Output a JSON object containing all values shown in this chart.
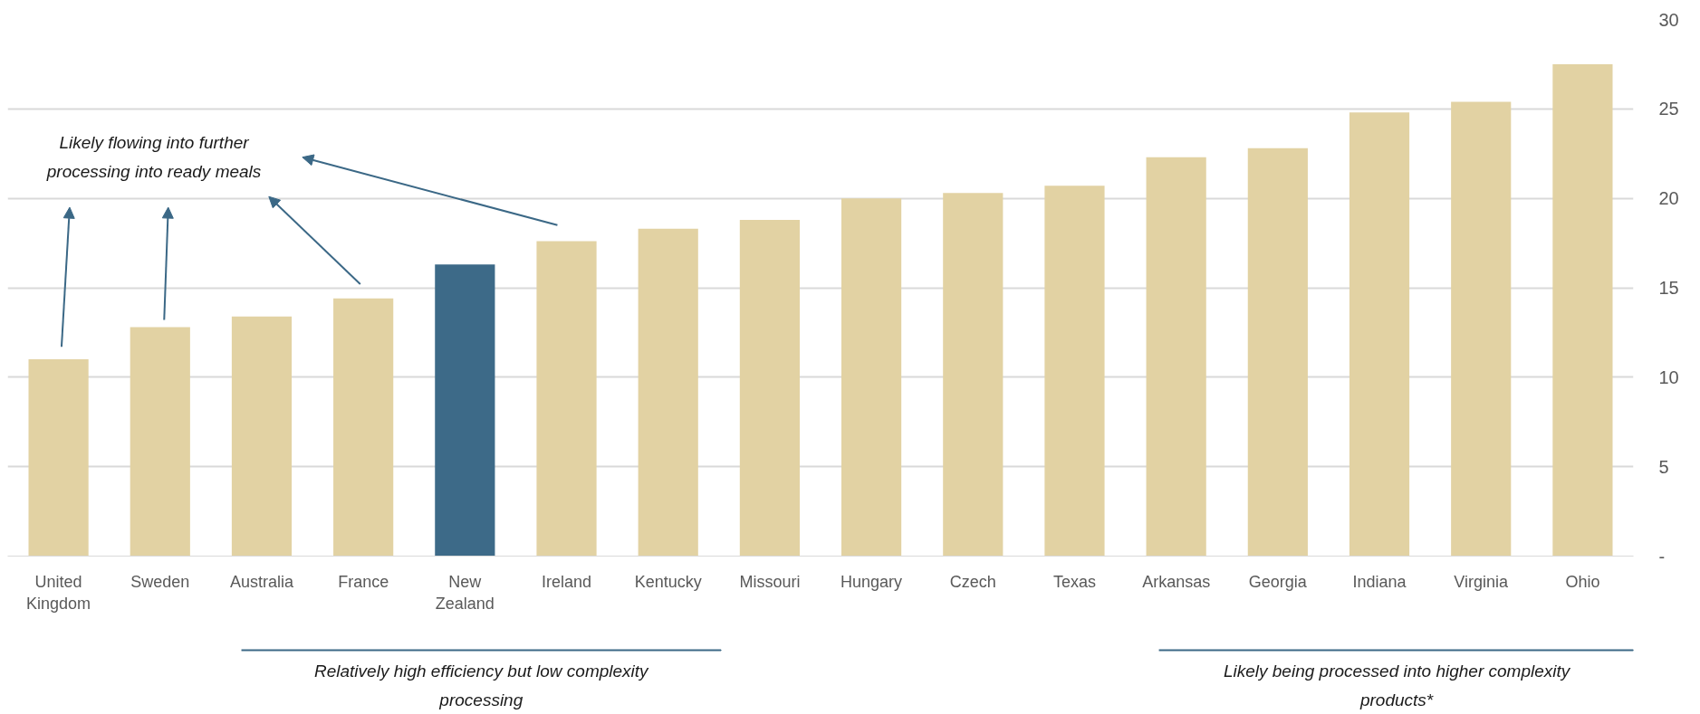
{
  "chart_data": {
    "type": "bar",
    "categories": [
      "United Kingdom",
      "Sweden",
      "Australia",
      "France",
      "New Zealand",
      "Ireland",
      "Kentucky",
      "Missouri",
      "Hungary",
      "Czech",
      "Texas",
      "Arkansas",
      "Georgia",
      "Indiana",
      "Virginia",
      "Ohio"
    ],
    "values": [
      11.0,
      12.8,
      13.4,
      14.4,
      16.3,
      17.6,
      18.3,
      18.8,
      20.0,
      20.3,
      20.7,
      22.3,
      22.8,
      24.8,
      25.4,
      27.5
    ],
    "colors": [
      "#e2d2a3",
      "#e2d2a3",
      "#e2d2a3",
      "#e2d2a3",
      "#3d6a88",
      "#e2d2a3",
      "#e2d2a3",
      "#e2d2a3",
      "#e2d2a3",
      "#e2d2a3",
      "#e2d2a3",
      "#e2d2a3",
      "#e2d2a3",
      "#e2d2a3",
      "#e2d2a3",
      "#e2d2a3"
    ],
    "ylim": [
      0,
      30
    ],
    "yticks": [
      {
        "value": 0,
        "label": "-"
      },
      5,
      10,
      15,
      20,
      25,
      30
    ],
    "grid": "y",
    "annotations": [
      "Likely flowing into further processing into ready meals",
      "Relatively high efficiency but low complexity processing",
      "Likely being processed into higher complexity products*"
    ]
  }
}
